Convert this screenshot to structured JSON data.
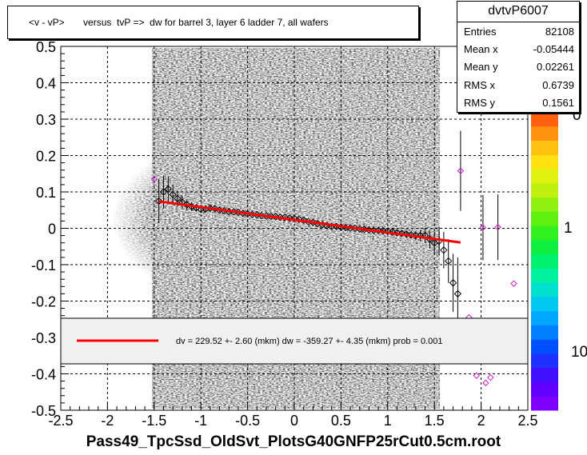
{
  "title": "<v - vP>       versus  tvP =>  dw for barrel 3, layer 6 ladder 7, all wafers",
  "footer": "Pass49_TpcSsd_OldSvt_PlotsG40GNFP25rCut0.5cm.root",
  "stats": {
    "name": "dvtvP6007",
    "rows": [
      {
        "label": "Entries",
        "value": "82108"
      },
      {
        "label": "Mean x",
        "value": "-0.05444"
      },
      {
        "label": "Mean y",
        "value": "0.02261"
      },
      {
        "label": "RMS x",
        "value": "0.6739"
      },
      {
        "label": "RMS y",
        "value": "0.1561"
      }
    ]
  },
  "legend": {
    "text": "dv =  229.52 +-  2.60 (mkm) dw = -359.27 +-  4.35 (mkm) prob = 0.001",
    "line_color": "#ff0000"
  },
  "palette": {
    "labels": [
      "10",
      "1",
      "0"
    ],
    "colors": [
      "#8000ff",
      "#6000ff",
      "#4010ff",
      "#2030ff",
      "#0050ff",
      "#0080ff",
      "#00a8ff",
      "#00c8f0",
      "#00e0d0",
      "#00f0a0",
      "#00f070",
      "#10f040",
      "#30f020",
      "#60f010",
      "#90f010",
      "#c0f010",
      "#e0f010",
      "#ffe010",
      "#ffc010",
      "#ff9010",
      "#ff6010"
    ]
  },
  "chart_data": {
    "type": "scatter",
    "subtype": "2D histogram (colz) with profile and linear fit",
    "xlim": [
      -2.5,
      2.5
    ],
    "ylim": [
      -0.5,
      0.5
    ],
    "xticks": [
      "-2.5",
      "-2",
      "-1.5",
      "-1",
      "-0.5",
      "0",
      "0.5",
      "1",
      "1.5",
      "2",
      "2.5"
    ],
    "yticks": [
      "-0.5",
      "-0.4",
      "-0.3",
      "-0.2",
      "-0.1",
      "0",
      "0.1",
      "0.2",
      "0.3",
      "0.4",
      "0.5"
    ],
    "grid": true,
    "fit_line": {
      "x": [
        -1.45,
        1.78
      ],
      "y": [
        0.074,
        -0.039
      ],
      "color": "#ff0000"
    },
    "profile_points": {
      "x": [
        -1.45,
        -1.4,
        -1.35,
        -1.3,
        -1.25,
        -1.2,
        -1.15,
        -1.1,
        -1.05,
        -1.0,
        -0.95,
        -0.9,
        -0.85,
        -0.8,
        -0.75,
        -0.7,
        -0.65,
        -0.6,
        -0.55,
        -0.5,
        -0.45,
        -0.4,
        -0.35,
        -0.3,
        -0.25,
        -0.2,
        -0.15,
        -0.1,
        -0.05,
        0.0,
        0.05,
        0.1,
        0.15,
        0.2,
        0.25,
        0.3,
        0.35,
        0.4,
        0.45,
        0.5,
        0.55,
        0.6,
        0.65,
        0.7,
        0.75,
        0.8,
        0.85,
        0.9,
        0.95,
        1.0,
        1.05,
        1.1,
        1.15,
        1.2,
        1.25,
        1.3,
        1.35,
        1.4,
        1.45,
        1.5,
        1.55,
        1.6,
        1.65,
        1.7,
        1.75
      ],
      "y": [
        0.075,
        0.1,
        0.108,
        0.093,
        0.082,
        0.072,
        0.065,
        0.06,
        0.056,
        0.052,
        0.053,
        0.055,
        0.054,
        0.05,
        0.048,
        0.046,
        0.045,
        0.044,
        0.041,
        0.04,
        0.038,
        0.037,
        0.035,
        0.034,
        0.033,
        0.032,
        0.03,
        0.03,
        0.028,
        0.027,
        0.025,
        0.022,
        0.018,
        0.016,
        0.013,
        0.01,
        0.007,
        0.005,
        0.005,
        0.003,
        0.002,
        0.001,
        0.0,
        -0.002,
        -0.003,
        -0.004,
        -0.006,
        -0.006,
        -0.007,
        -0.008,
        -0.01,
        -0.012,
        -0.014,
        -0.016,
        -0.018,
        -0.02,
        -0.02,
        -0.02,
        -0.03,
        -0.04,
        -0.035,
        -0.06,
        -0.09,
        -0.15,
        -0.18
      ],
      "yerr": [
        0.06,
        0.045,
        0.035,
        0.028,
        0.022,
        0.018,
        0.015,
        0.012,
        0.01,
        0.008,
        0.007,
        0.006,
        0.006,
        0.005,
        0.005,
        0.005,
        0.004,
        0.004,
        0.004,
        0.004,
        0.004,
        0.004,
        0.004,
        0.004,
        0.004,
        0.004,
        0.004,
        0.004,
        0.004,
        0.004,
        0.004,
        0.004,
        0.004,
        0.004,
        0.004,
        0.004,
        0.004,
        0.004,
        0.004,
        0.004,
        0.004,
        0.004,
        0.004,
        0.005,
        0.005,
        0.005,
        0.005,
        0.005,
        0.006,
        0.006,
        0.006,
        0.007,
        0.008,
        0.009,
        0.01,
        0.012,
        0.015,
        0.02,
        0.025,
        0.03,
        0.04,
        0.05,
        0.06,
        0.08,
        0.1
      ]
    },
    "outlier_points": {
      "x": [
        -1.5,
        1.78,
        2.02,
        2.18,
        2.35,
        1.87,
        2.1,
        1.95,
        2.05
      ],
      "y": [
        0.135,
        0.158,
        0.002,
        0.003,
        -0.152,
        -0.245,
        -0.41,
        -0.405,
        -0.425
      ],
      "yerr": [
        0.0,
        0.11,
        0.09,
        0.09,
        0.0,
        0.0,
        0.0,
        0.0,
        0.0
      ]
    }
  }
}
